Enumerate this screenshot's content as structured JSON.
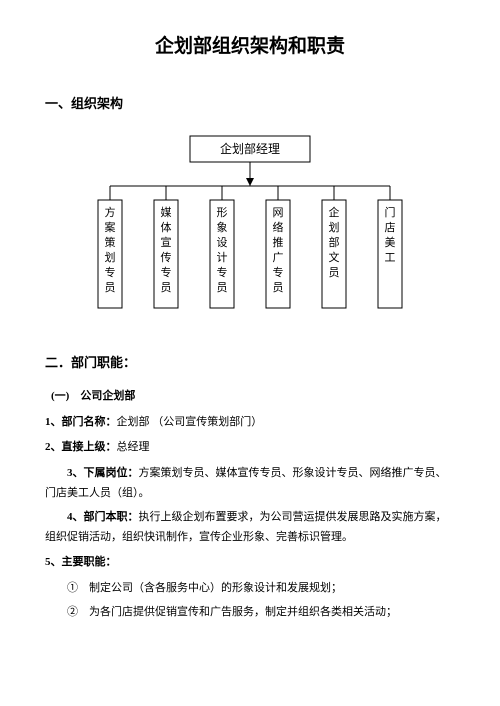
{
  "title": "企划部组织架构和职责",
  "section1": {
    "heading": "一、组织架构",
    "chart": {
      "type": "tree",
      "root": "企划部经理",
      "children": [
        "方案策划专员",
        "媒体宣传专员",
        "形象设计专员",
        "网络推广专员",
        "企划部文员",
        "门店美工"
      ],
      "box_border": "#000000",
      "box_fill": "#ffffff",
      "line_color": "#000000",
      "root_w": 120,
      "root_h": 26,
      "child_w": 24,
      "child_h": 108,
      "root_fontsize": 12,
      "child_fontsize": 11
    }
  },
  "section2": {
    "heading": "二．部门职能：",
    "sub1": {
      "heading": "(一)　公司企划部",
      "items": [
        {
          "label": "1、部门名称：",
          "text": "企划部 （公司宣传策划部门）"
        },
        {
          "label": "2、直接上级：",
          "text": "总经理"
        },
        {
          "label": "3、下属岗位：",
          "text": "方案策划专员、媒体宣传专员、形象设计专员、网络推广专员、门店美工人员（组）。"
        },
        {
          "label": "4、部门本职：",
          "text": "执行上级企划布置要求，为公司营运提供发展思路及实施方案，组织促销活动，组织快讯制作，宣传企业形象、完善标识管理。"
        },
        {
          "label": "5、主要职能：",
          "text": ""
        }
      ],
      "duties": [
        "①　制定公司（含各服务中心）的形象设计和发展规划；",
        "②　为各门店提供促销宣传和广告服务，制定并组织各类相关活动；"
      ]
    }
  },
  "colors": {
    "text": "#000000",
    "bg": "#ffffff"
  }
}
